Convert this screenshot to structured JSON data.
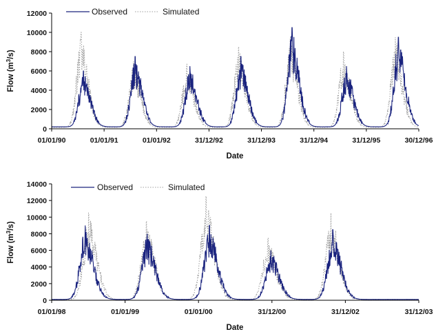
{
  "chart_data": [
    {
      "type": "line",
      "xlabel": "Date",
      "ylabel_parts": [
        "Flow (m",
        "3",
        "/s)"
      ],
      "ylim": [
        0,
        12000
      ],
      "yticks": [
        "0",
        "2000",
        "4000",
        "6000",
        "8000",
        "10000",
        "12000"
      ],
      "xlim": [
        "1990-01-01",
        "1996-12-30"
      ],
      "xtick_labels": [
        "01/01/90",
        "01/01/91",
        "01/01/92",
        "31/12/92",
        "31/12/93",
        "31/12/94",
        "31/12/95",
        "30/12/96"
      ],
      "legend_position": "top-left",
      "grid": false,
      "series": [
        {
          "name": "Observed",
          "color": "#1a237e",
          "style": "solid",
          "peaks": [
            {
              "date": "1990-08-10",
              "value": 6000
            },
            {
              "date": "1991-08-05",
              "value": 7500
            },
            {
              "date": "1992-08-20",
              "value": 6500
            },
            {
              "date": "1993-08-10",
              "value": 7500
            },
            {
              "date": "1994-08-01",
              "value": 10500
            },
            {
              "date": "1995-08-15",
              "value": 6500
            },
            {
              "date": "1996-08-10",
              "value": 9500
            }
          ],
          "baseflow": 200
        },
        {
          "name": "Simulated",
          "color": "#9e9e9e",
          "style": "dotted",
          "peaks": [
            {
              "date": "1990-07-25",
              "value": 10000
            },
            {
              "date": "1991-07-25",
              "value": 7000
            },
            {
              "date": "1992-07-30",
              "value": 6700
            },
            {
              "date": "1993-07-25",
              "value": 8500
            },
            {
              "date": "1994-07-20",
              "value": 9500
            },
            {
              "date": "1995-07-25",
              "value": 8000
            },
            {
              "date": "1996-07-20",
              "value": 9500
            }
          ],
          "baseflow": 150
        }
      ]
    },
    {
      "type": "line",
      "xlabel": "Date",
      "ylabel_parts": [
        "Flow (m",
        "3",
        "/s)"
      ],
      "ylim": [
        0,
        14000
      ],
      "yticks": [
        "0",
        "2000",
        "4000",
        "6000",
        "8000",
        "10000",
        "12000",
        "14000"
      ],
      "xlim": [
        "1998-01-01",
        "2003-12-31"
      ],
      "xtick_labels": [
        "01/01/98",
        "01/01/99",
        "01/01/00",
        "31/12/00",
        "31/12/02",
        "31/12/03"
      ],
      "legend_position": "top-left",
      "grid": false,
      "series": [
        {
          "name": "Observed",
          "color": "#1a237e",
          "style": "solid",
          "peaks": [
            {
              "date": "1998-07-20",
              "value": 9000
            },
            {
              "date": "1999-07-25",
              "value": 8000
            },
            {
              "date": "2000-07-30",
              "value": 9000
            },
            {
              "date": "2001-08-01",
              "value": 6000
            },
            {
              "date": "2002-08-05",
              "value": 8500
            }
          ],
          "baseflow": 100
        },
        {
          "name": "Simulated",
          "color": "#9e9e9e",
          "style": "dotted",
          "peaks": [
            {
              "date": "1998-08-10",
              "value": 10500
            },
            {
              "date": "1999-07-20",
              "value": 9500
            },
            {
              "date": "2000-07-10",
              "value": 12500
            },
            {
              "date": "2001-07-15",
              "value": 7500
            },
            {
              "date": "2002-07-25",
              "value": 10500
            }
          ],
          "baseflow": 80
        }
      ]
    }
  ]
}
